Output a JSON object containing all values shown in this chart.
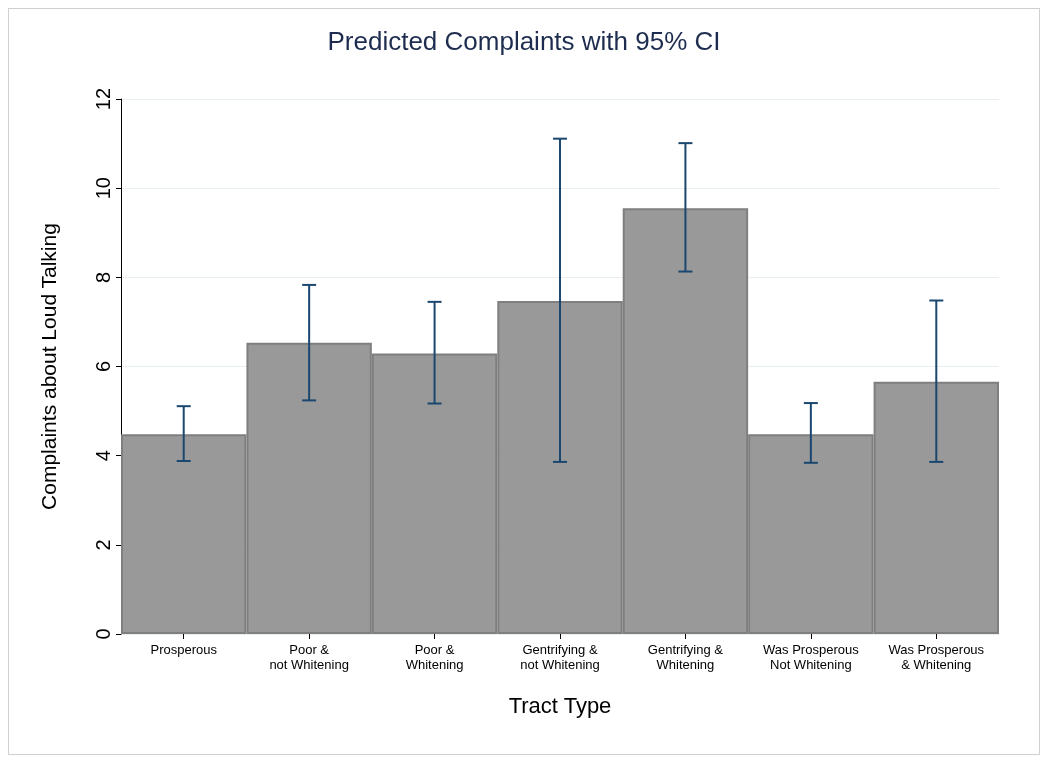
{
  "chart_data": {
    "type": "bar",
    "title": "Predicted Complaints with 95% CI",
    "xlabel": "Tract Type",
    "ylabel": "Complaints about Loud Talking",
    "categories": [
      "Prosperous",
      "Poor &\nnot Whitening",
      "Poor &\nWhitening",
      "Gentrifying &\nnot Whitening",
      "Gentrifying &\nWhitening",
      "Was Prosperous\nNot Whitening",
      "Was Prosperous\n& Whitening"
    ],
    "series": [
      {
        "color": "#999999",
        "values": [
          4.48,
          6.53,
          6.29,
          7.47,
          9.55,
          4.48,
          5.66
        ],
        "errors": [
          [
            3.88,
            5.11
          ],
          [
            5.24,
            7.83
          ],
          [
            5.17,
            7.45
          ],
          [
            3.86,
            11.11
          ],
          [
            8.13,
            11.01
          ],
          [
            3.84,
            5.18
          ],
          [
            3.86,
            7.48
          ]
        ]
      }
    ],
    "ylim": [
      0,
      12
    ],
    "yticks": [
      0,
      2,
      4,
      6,
      8,
      10,
      12
    ],
    "grid": "y"
  }
}
